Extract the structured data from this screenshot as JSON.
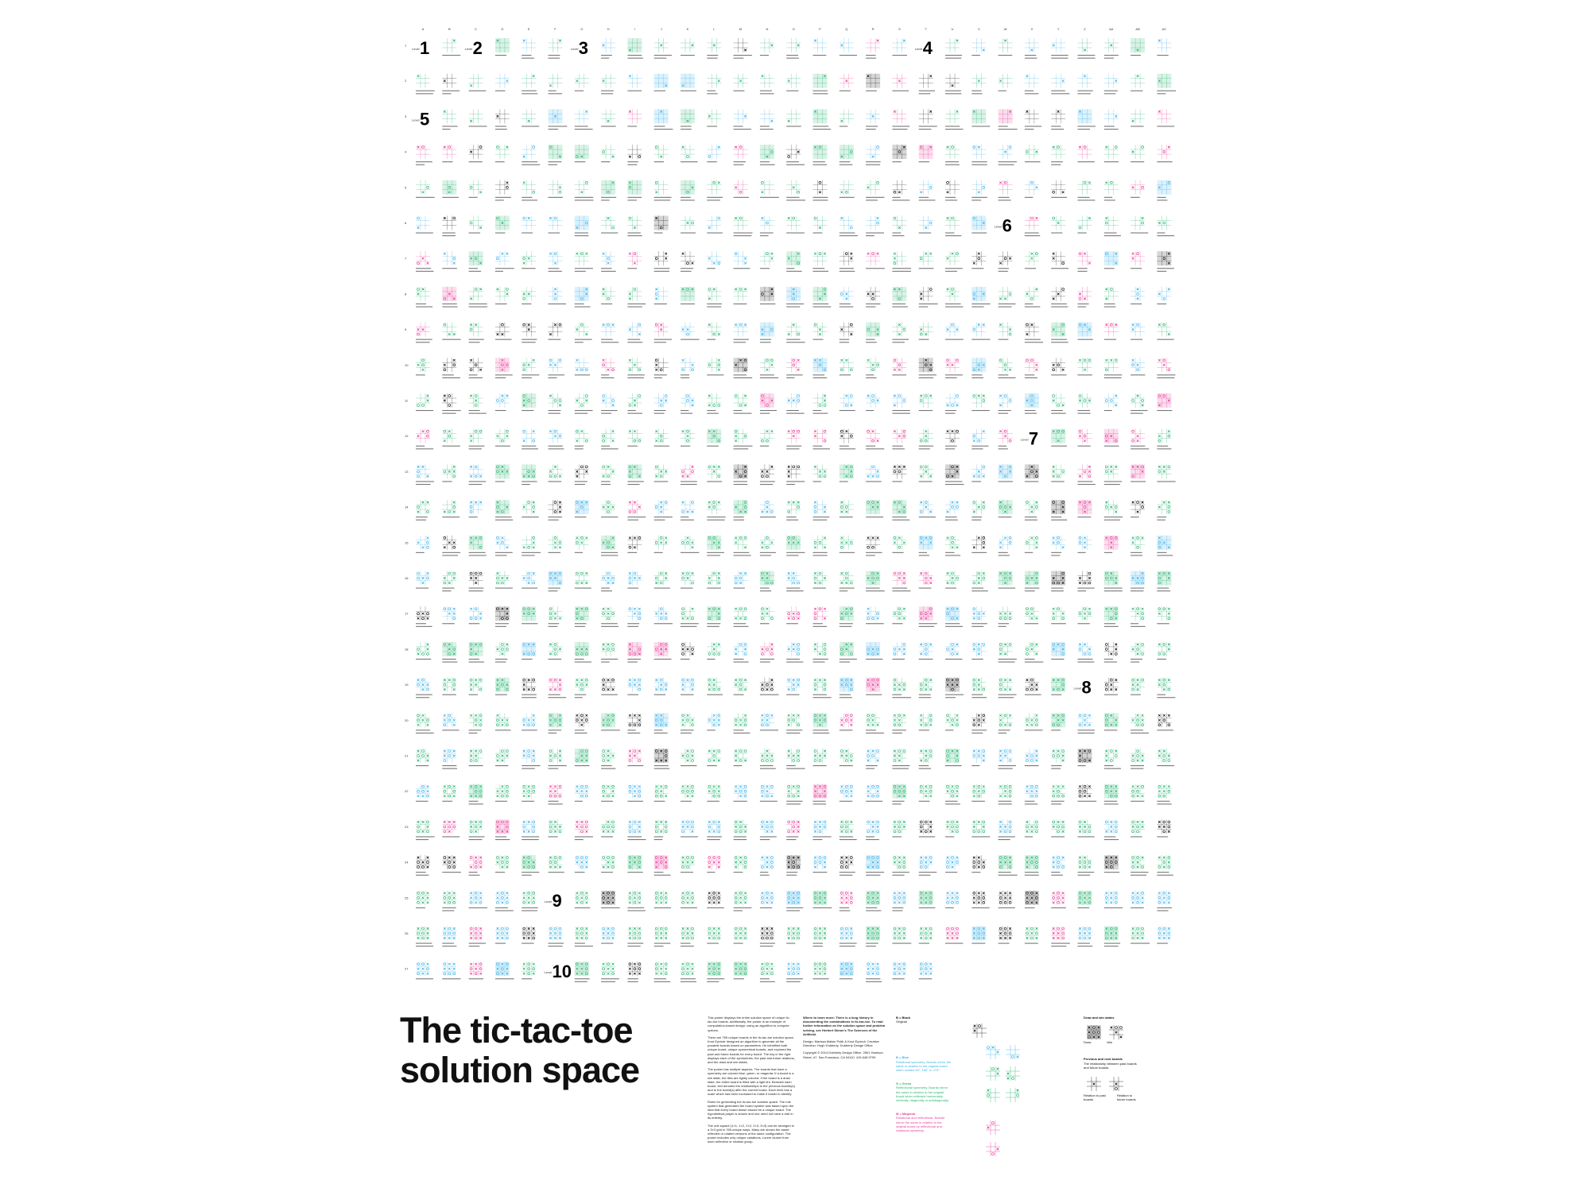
{
  "title": "The tic-tac-toe solution space",
  "column_headers": [
    "A",
    "B",
    "C",
    "D",
    "E",
    "F",
    "G",
    "H",
    "I",
    "J",
    "K",
    "L",
    "M",
    "N",
    "O",
    "P",
    "Q",
    "R",
    "S",
    "T",
    "U",
    "V",
    "W",
    "X",
    "Y",
    "Z",
    "AA",
    "AB",
    "AC"
  ],
  "row_headers": [
    "1",
    "2",
    "3",
    "4",
    "5",
    "6",
    "7",
    "8",
    "9",
    "10",
    "11",
    "12",
    "13",
    "14",
    "15",
    "16",
    "17",
    "18",
    "19",
    "20",
    "21",
    "22",
    "23",
    "24",
    "25",
    "26",
    "27"
  ],
  "levels": [
    {
      "label": "Level",
      "number": "1",
      "row": 1,
      "col": 1
    },
    {
      "label": "Level",
      "number": "2",
      "row": 1,
      "col": 3
    },
    {
      "label": "Level",
      "number": "3",
      "row": 1,
      "col": 7
    },
    {
      "label": "Level",
      "number": "4",
      "row": 1,
      "col": 20
    },
    {
      "label": "Level",
      "number": "5",
      "row": 3,
      "col": 1
    },
    {
      "label": "Level",
      "number": "6",
      "row": 6,
      "col": 23
    },
    {
      "label": "Level",
      "number": "7",
      "row": 12,
      "col": 24
    },
    {
      "label": "Level",
      "number": "8",
      "row": 19,
      "col": 26
    },
    {
      "label": "Level",
      "number": "9",
      "row": 25,
      "col": 6
    },
    {
      "label": "Level",
      "number": "10",
      "row": 27,
      "col": 6
    }
  ],
  "last_row_board_count": 20,
  "colors": {
    "black": "#1a1a1a",
    "cyan": "#3fb3e8",
    "green": "#2bb673",
    "magenta": "#e8409a",
    "grid_line": "#9a9a9a"
  },
  "intro": {
    "col1": [
      "This poster displays the entire solution space of unique tic-tac-toe boards. Additionally, the poster is an example of computation-based design: using an algorithm to compute options.",
      "There are 765 unique boards in the tic-tac-toe solution space. Knut Eyvindr designed an algorithm to generate all the possible boards based on parameters. He identified both unique board, unique symmetrical boards, and explored the past and future boards for every board. The key in the right displays each of the symmetries, the past and future relations, and the draw and win states.",
      "The poster has multiple aspects. The boards that have a symmetry are colored blue, green, or magenta. If a board is a win state, the tiles are lightly colored. If the board is a draw state, the entire board is filled with a light tint. Beneath each board, text denotes the relationships to the previous boards(s) and to the board(s) after the current board. Each level has a scale which has been increased to make it easier to identify.",
      "Rules for generating the tic-tac-toe solution space: The rule system that generated the board system was based upon the idea that every board drawn should be a unique board. The hypothetical player is shown and one need not have a visit in its entirety.",
      "The unit square (1×1, 1×2, 2×2, 2×3, 3×3) can be arranged in a 3×3 grid in 765 unique ways. Many are shown the same: reflected or rotated versions of the same configuration. The poster includes only unique variations. Lorem cluster from each reflection or rotation group."
    ],
    "col2": [
      "Where to learn more: There is a long history in documenting the combinations in tic-tac-toe. To read further information on the solution space and problem solving, see Herbert Simon's The Sciences of the Artificial.",
      "Design: Marissa Malsin Potik & Knut Eyvindr. Creative Direction: Hugh Dubberly. Dubberly Design Office",
      "Copyright © 2014 Dubberly Design Office. 2501 Harrison Street, #7. San Francisco, CA 94110. 415 648 9799"
    ]
  },
  "legend": {
    "items": [
      {
        "title": "B = Black",
        "text": "Original",
        "color": "#1a1a1a"
      },
      {
        "title": "B = Blue",
        "text": "Rotational symmetry. Boards mirror the same in relation to the original board when rotated 90°, 180° or 270°.",
        "color": "#3fb3e8"
      },
      {
        "title": "G = Green",
        "text": "Reflectional symmetry. Boards mirror the same in relation to the original board when reflected horizontally, vertically, diagonally or antidiagonally.",
        "color": "#2bb673"
      },
      {
        "title": "M = Magenta",
        "text": "Rotational and reflectional. Boards mirror the same in relation to the original board by reflectional and rotational symmetry.",
        "color": "#e8409a"
      }
    ],
    "states": {
      "title": "Draw and win states",
      "draw": "Draw",
      "win": "Win",
      "relations_title": "Previous and next boards",
      "relations_text": "The relationship between past boards and future boards",
      "past": "Relation to past boards",
      "future": "Relation to future boards"
    }
  }
}
